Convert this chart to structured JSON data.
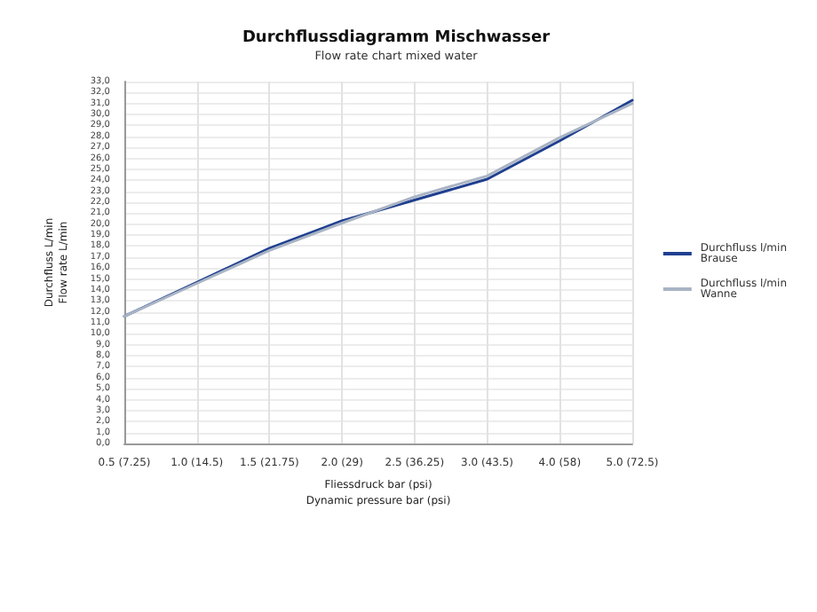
{
  "chart_data": {
    "type": "line",
    "title": "Durchflussdiagramm Mischwasser",
    "subtitle": "Flow rate chart mixed water",
    "xlabel": "Fliessdruck bar (psi)\nDynamic pressure bar (psi)",
    "ylabel": "Durchfluss L/min\nFlow rate L/min",
    "categories": [
      "0.5 (7.25)",
      "1.0 (14.5)",
      "1.5 (21.75)",
      "2.0 (29)",
      "2.5 (36.25)",
      "3.0 (43.5)",
      "4.0 (58)",
      "5.0 (72.5)"
    ],
    "series": [
      {
        "name": "Durchfluss l/min\nBrause",
        "color": "#1f3f8f",
        "values": [
          11.6,
          14.7,
          17.8,
          20.3,
          22.2,
          24.1,
          27.6,
          31.3
        ]
      },
      {
        "name": "Durchfluss l/min\nWanne",
        "color": "#a9b4c4",
        "values": [
          11.6,
          14.6,
          17.6,
          20.1,
          22.5,
          24.4,
          27.9,
          31.0
        ]
      }
    ],
    "ylim": [
      0,
      33
    ],
    "yticks": [
      {
        "value": 0,
        "label": "0,0"
      },
      {
        "value": 1,
        "label": "1,0"
      },
      {
        "value": 2,
        "label": "2,0"
      },
      {
        "value": 3,
        "label": "3,0"
      },
      {
        "value": 4,
        "label": "4,0"
      },
      {
        "value": 5,
        "label": "5,0"
      },
      {
        "value": 6,
        "label": "6,0"
      },
      {
        "value": 7,
        "label": "7,0"
      },
      {
        "value": 8,
        "label": "8,0"
      },
      {
        "value": 9,
        "label": "9,0"
      },
      {
        "value": 10,
        "label": "10,0"
      },
      {
        "value": 11,
        "label": "11,0"
      },
      {
        "value": 12,
        "label": "12,0"
      },
      {
        "value": 13,
        "label": "13,0"
      },
      {
        "value": 14,
        "label": "14,0"
      },
      {
        "value": 15,
        "label": "15,0"
      },
      {
        "value": 16,
        "label": "16,0"
      },
      {
        "value": 17,
        "label": "17,0"
      },
      {
        "value": 18,
        "label": "18,0"
      },
      {
        "value": 19,
        "label": "19,0"
      },
      {
        "value": 20,
        "label": "20,0"
      },
      {
        "value": 21,
        "label": "21,0"
      },
      {
        "value": 22,
        "label": "22,0"
      },
      {
        "value": 23,
        "label": "23,0"
      },
      {
        "value": 24,
        "label": "24,0"
      },
      {
        "value": 25,
        "label": "25,0"
      },
      {
        "value": 26,
        "label": "26,0"
      },
      {
        "value": 27,
        "label": "27,0"
      },
      {
        "value": 28,
        "label": "28,0"
      },
      {
        "value": 29,
        "label": "29,0"
      },
      {
        "value": 30,
        "label": "30,0"
      },
      {
        "value": 31,
        "label": "31,0"
      },
      {
        "value": 32,
        "label": "32,0"
      },
      {
        "value": 33,
        "label": "33,0"
      }
    ],
    "grid": true,
    "legend": "right",
    "marker": "none",
    "line_style": "solid"
  }
}
